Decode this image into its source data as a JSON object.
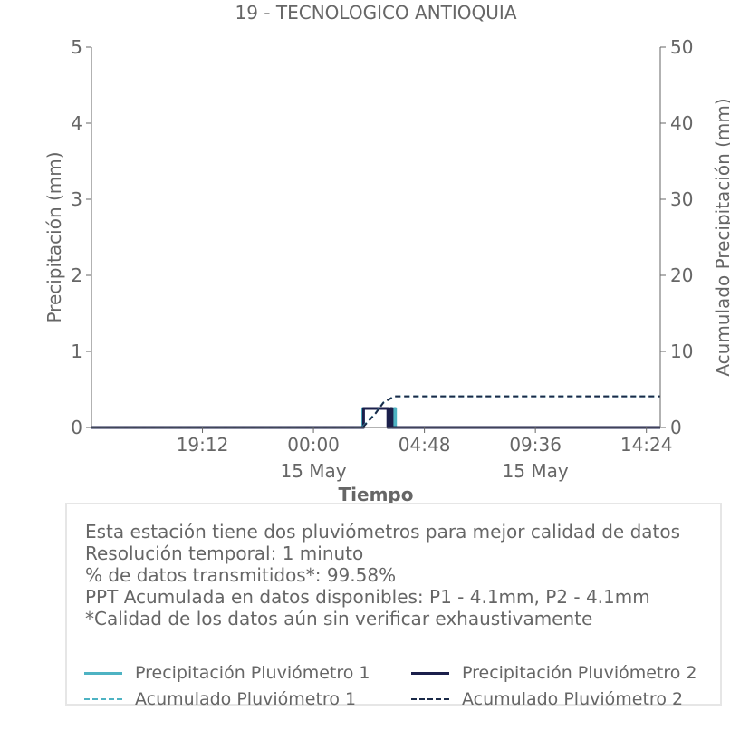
{
  "chart_data": {
    "type": "line",
    "title": "19 - TECNOLOGICO ANTIOQUIA",
    "xlabel": "Tiempo",
    "ylabel": "Precipitación (mm)",
    "y2label": "Acumulado Precipitación (mm)",
    "x_start": "2024-05-14T14:24",
    "x_end": "2024-05-15T15:00",
    "xlim": [
      "2024-05-14T14:24",
      "2024-05-15T15:00"
    ],
    "ylim": [
      0,
      5
    ],
    "y2lim": [
      0,
      50
    ],
    "x_ticks": [
      {
        "time": "2024-05-14T19:12",
        "label": "19:12",
        "sublabel": ""
      },
      {
        "time": "2024-05-15T00:00",
        "label": "00:00",
        "sublabel": "15 May"
      },
      {
        "time": "2024-05-15T04:48",
        "label": "04:48",
        "sublabel": ""
      },
      {
        "time": "2024-05-15T09:36",
        "label": "09:36",
        "sublabel": "15 May"
      },
      {
        "time": "2024-05-15T14:24",
        "label": "14:24",
        "sublabel": ""
      }
    ],
    "y_ticks": [
      "0",
      "1",
      "2",
      "3",
      "4",
      "5"
    ],
    "y2_ticks": [
      "0",
      "10",
      "20",
      "30",
      "40",
      "50"
    ],
    "grid": false,
    "series": [
      {
        "name": "Precipitación Pluviómetro 1",
        "axis": "left",
        "style": "solid",
        "color": "#4eb3c3",
        "points": [
          [
            "2024-05-14T14:24",
            0
          ],
          [
            "2024-05-15T02:08",
            0
          ],
          [
            "2024-05-15T02:08",
            0.25
          ],
          [
            "2024-05-15T03:15",
            0.25
          ],
          [
            "2024-05-15T03:15",
            0
          ],
          [
            "2024-05-15T03:29",
            0
          ],
          [
            "2024-05-15T03:29",
            0.25
          ],
          [
            "2024-05-15T03:33",
            0.25
          ],
          [
            "2024-05-15T03:33",
            0
          ],
          [
            "2024-05-15T15:00",
            0
          ]
        ]
      },
      {
        "name": "Precipitación Pluviómetro 2",
        "axis": "left",
        "style": "solid",
        "color": "#1b1f4b",
        "points": [
          [
            "2024-05-14T14:24",
            0
          ],
          [
            "2024-05-15T02:10",
            0
          ],
          [
            "2024-05-15T02:10",
            0.25
          ],
          [
            "2024-05-15T03:13",
            0.25
          ],
          [
            "2024-05-15T03:13",
            0
          ],
          [
            "2024-05-15T03:20",
            0
          ],
          [
            "2024-05-15T03:20",
            0.25
          ],
          [
            "2024-05-15T03:24",
            0.25
          ],
          [
            "2024-05-15T03:24",
            0
          ],
          [
            "2024-05-15T15:00",
            0
          ]
        ]
      },
      {
        "name": "Acumulado Pluviómetro 1",
        "axis": "right",
        "style": "dashed",
        "color": "#4eb3c3",
        "points": [
          [
            "2024-05-14T14:24",
            0
          ],
          [
            "2024-05-15T02:06",
            0
          ],
          [
            "2024-05-15T02:40",
            1.8
          ],
          [
            "2024-05-15T03:00",
            3.2
          ],
          [
            "2024-05-15T03:30",
            4.1
          ],
          [
            "2024-05-15T15:00",
            4.1
          ]
        ]
      },
      {
        "name": "Acumulado Pluviómetro 2",
        "axis": "right",
        "style": "dashed",
        "color": "#1b2a48",
        "points": [
          [
            "2024-05-14T14:24",
            0
          ],
          [
            "2024-05-15T02:08",
            0
          ],
          [
            "2024-05-15T02:42",
            1.9
          ],
          [
            "2024-05-15T03:02",
            3.3
          ],
          [
            "2024-05-15T03:30",
            4.1
          ],
          [
            "2024-05-15T15:00",
            4.1
          ]
        ]
      }
    ]
  },
  "info": {
    "lines": [
      "Esta estación tiene dos pluviómetros para mejor calidad de datos",
      "Resolución temporal: 1 minuto",
      "% de datos transmitidos*: 99.58%",
      "PPT Acumulada en datos disponibles: P1 - 4.1mm, P2 - 4.1mm",
      "*Calidad de los datos aún sin verificar exhaustivamente"
    ]
  },
  "legend": {
    "placement": "bottom",
    "items": [
      {
        "label": "Precipitación Pluviómetro 1",
        "style": "solid",
        "color": "#4eb3c3"
      },
      {
        "label": "Precipitación Pluviómetro 2",
        "style": "solid",
        "color": "#1b1f4b"
      },
      {
        "label": "Acumulado Pluviómetro 1",
        "style": "dashed",
        "color": "#4eb3c3"
      },
      {
        "label": "Acumulado Pluviómetro 2",
        "style": "dashed",
        "color": "#1b2a48"
      }
    ]
  }
}
